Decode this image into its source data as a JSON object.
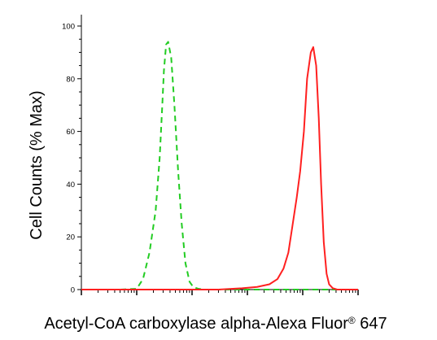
{
  "chart_data": {
    "type": "line",
    "title": "",
    "xlabel": "Acetyl-CoA carboxylase alpha-Alexa Fluor",
    "xlabel_superscript": "®",
    "xlabel_suffix": " 647",
    "ylabel": "Cell Counts (% Max)",
    "xscale": "log",
    "xlim": [
      0.1,
      10000
    ],
    "ylim": [
      0,
      100
    ],
    "yticks": [
      0,
      20,
      40,
      60,
      80,
      100
    ],
    "ytick_labels": [
      "0",
      "20",
      "40",
      "60",
      "80",
      "100"
    ],
    "grid": false,
    "legend": "none",
    "series": [
      {
        "color": "#22cc22",
        "style": "dashed",
        "x": [
          0.1,
          0.5,
          1.0,
          1.3,
          1.7,
          2.2,
          2.6,
          2.9,
          3.1,
          3.4,
          3.7,
          4.2,
          4.8,
          5.6,
          6.5,
          7.6,
          9.0,
          10.5,
          13.0,
          17.0,
          25.0,
          60.0,
          10000
        ],
        "y": [
          0,
          0,
          0.3,
          4,
          14,
          30,
          50,
          70,
          83,
          93,
          94,
          88,
          70,
          45,
          25,
          10,
          3,
          1,
          0.3,
          0,
          0,
          0,
          0
        ]
      },
      {
        "color": "#ff2020",
        "style": "solid",
        "x": [
          0.1,
          30,
          80,
          150,
          250,
          350,
          450,
          550,
          650,
          780,
          900,
          1050,
          1200,
          1400,
          1550,
          1750,
          1950,
          2150,
          2400,
          2700,
          3000,
          3500,
          4200,
          10000
        ],
        "y": [
          0,
          0,
          0.5,
          1,
          2,
          4,
          8,
          14,
          24,
          35,
          45,
          60,
          80,
          90,
          92,
          85,
          65,
          40,
          18,
          6,
          2,
          0.5,
          0,
          0
        ]
      }
    ]
  }
}
